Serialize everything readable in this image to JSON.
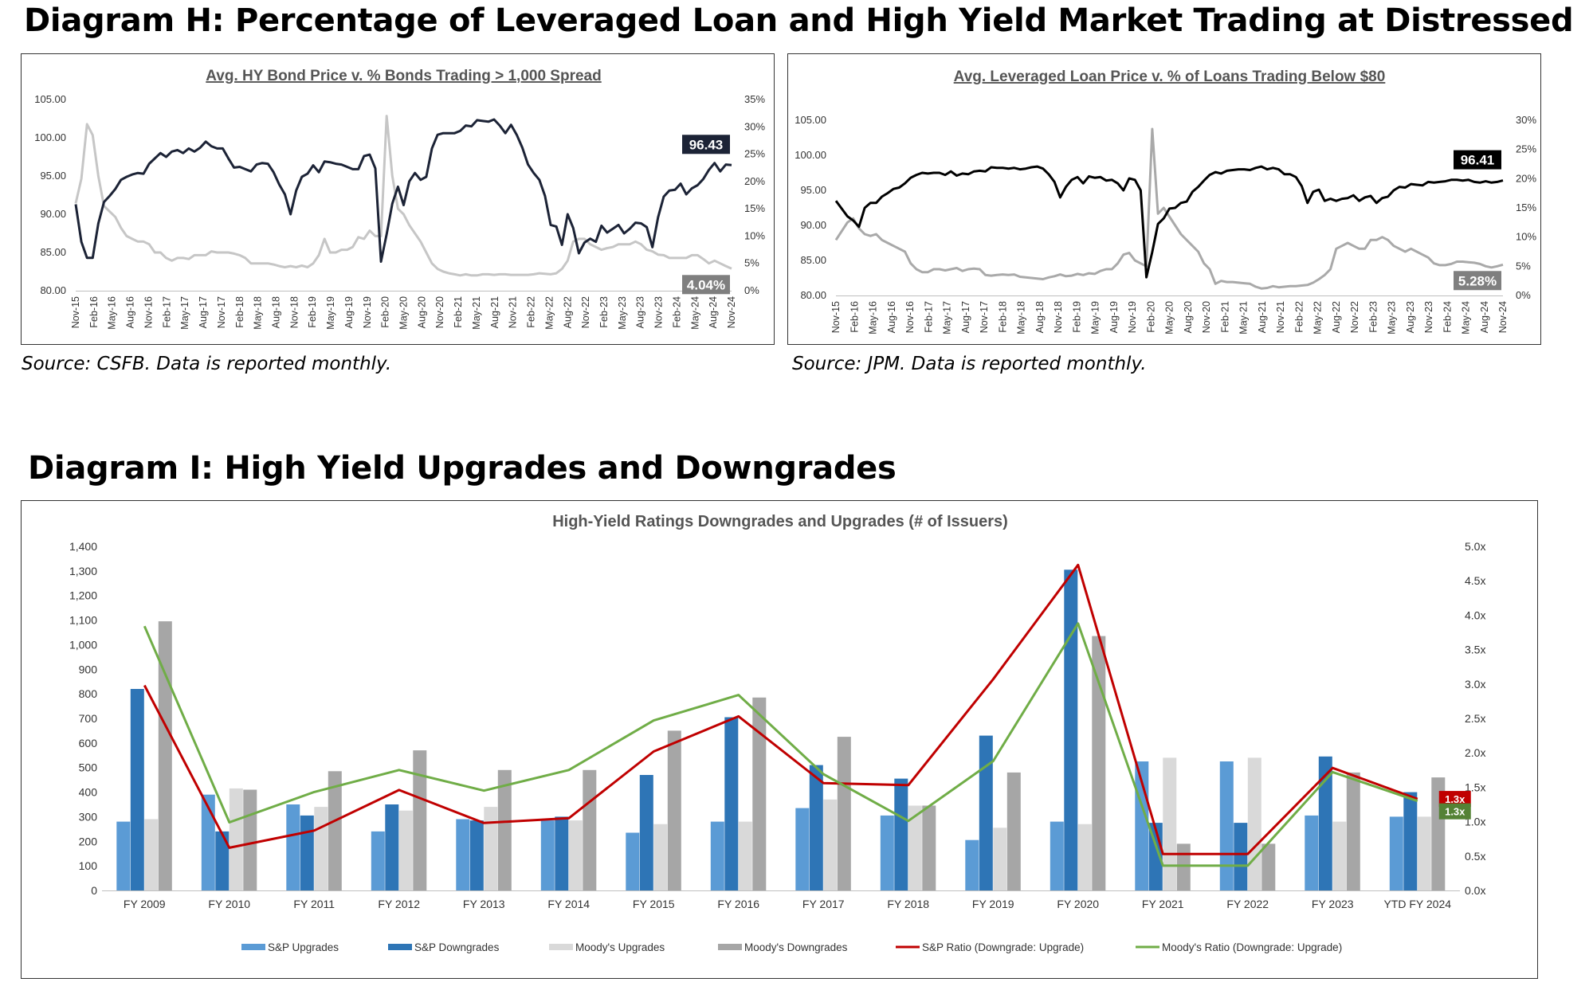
{
  "diagram_h": {
    "title": "Diagram H: Percentage of Leveraged Loan and High Yield Market Trading at Distressed"
  },
  "diagram_i": {
    "title": "Diagram I: High Yield Upgrades and Downgrades"
  },
  "chart_data": [
    {
      "type": "line",
      "title": "Avg. HY Bond Price v. % Bonds Trading > 1,000 Spread",
      "source": "Source: CSFB. Data is reported monthly.",
      "x_ticks": [
        "Nov-15",
        "Feb-16",
        "May-16",
        "Aug-16",
        "Nov-16",
        "Feb-17",
        "May-17",
        "Aug-17",
        "Nov-17",
        "Feb-18",
        "May-18",
        "Aug-18",
        "Nov-18",
        "Feb-19",
        "May-19",
        "Aug-19",
        "Nov-19",
        "Feb-20",
        "May-20",
        "Aug-20",
        "Nov-20",
        "Feb-21",
        "May-21",
        "Aug-21",
        "Nov-21",
        "Feb-22",
        "May-22",
        "Aug-22",
        "Nov-22",
        "Feb-23",
        "May-23",
        "Aug-23",
        "Nov-23",
        "Feb-24",
        "May-24",
        "Aug-24",
        "Nov-24"
      ],
      "y_left": {
        "ticks": [
          "105.00",
          "100.00",
          "95.00",
          "90.00",
          "85.00",
          "80.00"
        ],
        "min": 80,
        "max": 105
      },
      "y_right": {
        "ticks": [
          "35%",
          "30%",
          "25%",
          "20%",
          "15%",
          "10%",
          "5%",
          "0%"
        ],
        "min": 0,
        "max": 35
      },
      "colors": {
        "price": "#1c2336",
        "pct": "#c6c6c6"
      },
      "series": [
        {
          "axis": "left",
          "values": [
            91.3,
            86.4,
            84.3,
            84.3,
            88.8,
            91.6,
            92.4,
            93.3,
            94.5,
            94.9,
            95.2,
            95.4,
            95.3,
            96.6,
            97.3,
            98.0,
            97.5,
            98.2,
            98.4,
            98.0,
            98.6,
            98.2,
            98.7,
            99.5,
            98.9,
            98.6,
            98.6,
            97.3,
            96.1,
            96.2,
            95.9,
            95.6,
            96.5,
            96.7,
            96.6,
            95.5,
            93.9,
            92.6,
            90.0,
            93.1,
            94.9,
            95.3,
            96.4,
            95.5,
            96.9,
            96.8,
            96.6,
            96.5,
            96.2,
            95.9,
            95.9,
            97.6,
            97.8,
            96.0,
            83.8,
            87.4,
            91.4,
            93.6,
            91.2,
            94.3,
            95.4,
            94.5,
            94.9,
            98.6,
            100.4,
            100.6,
            100.6,
            100.6,
            100.9,
            101.6,
            101.5,
            102.3,
            102.2,
            102.1,
            102.4,
            101.6,
            100.6,
            101.7,
            100.4,
            98.7,
            96.5,
            95.4,
            94.5,
            92.4,
            88.6,
            88.4,
            86.0,
            90.0,
            88.2,
            84.9,
            86.3,
            86.8,
            86.4,
            88.5,
            87.6,
            88.1,
            88.6,
            87.5,
            88.1,
            88.9,
            88.8,
            88.3,
            85.7,
            89.6,
            92.3,
            93.1,
            93.2,
            94.0,
            92.6,
            93.4,
            93.8,
            94.6,
            95.8,
            96.7,
            95.6,
            96.5,
            96.43
          ]
        },
        {
          "axis": "right",
          "values": [
            16.0,
            20.5,
            30.5,
            28.5,
            21.0,
            15.5,
            14.5,
            13.5,
            11.5,
            10.0,
            9.5,
            9.0,
            9.0,
            8.5,
            7.0,
            7.0,
            6.0,
            5.5,
            6.0,
            6.0,
            5.8,
            6.5,
            6.5,
            6.5,
            7.2,
            7.0,
            7.0,
            7.0,
            6.8,
            6.5,
            6.0,
            5.0,
            5.0,
            5.0,
            5.0,
            4.8,
            4.5,
            4.3,
            4.5,
            4.3,
            4.6,
            4.3,
            5.0,
            6.5,
            9.5,
            7.0,
            7.0,
            7.5,
            7.5,
            8.0,
            9.8,
            9.5,
            11.0,
            10.0,
            10.0,
            32.0,
            21.0,
            15.0,
            14.0,
            12.0,
            10.5,
            9.0,
            7.0,
            5.0,
            4.0,
            3.5,
            3.2,
            3.0,
            2.8,
            3.0,
            2.8,
            2.8,
            3.0,
            3.0,
            2.9,
            3.0,
            3.0,
            2.9,
            2.9,
            2.9,
            2.9,
            3.0,
            3.2,
            3.1,
            3.0,
            3.2,
            4.0,
            5.5,
            9.0,
            9.5,
            9.5,
            8.5,
            8.0,
            7.5,
            7.8,
            8.0,
            8.5,
            8.5,
            8.5,
            9.0,
            8.5,
            7.5,
            7.2,
            6.6,
            6.5,
            6.0,
            6.0,
            6.0,
            6.0,
            6.5,
            6.5,
            5.8,
            5.0,
            5.5,
            5.0,
            4.5,
            4.04
          ]
        }
      ],
      "callouts": {
        "price": "96.43",
        "pct": "4.04%"
      }
    },
    {
      "type": "line",
      "title": "Avg. Leveraged Loan Price v. % of Loans Trading Below $80",
      "source": "Source: JPM. Data is reported monthly.",
      "x_ticks": [
        "Nov-15",
        "Feb-16",
        "May-16",
        "Aug-16",
        "Nov-16",
        "Feb-17",
        "May-17",
        "Aug-17",
        "Nov-17",
        "Feb-18",
        "May-18",
        "Aug-18",
        "Nov-18",
        "Feb-19",
        "May-19",
        "Aug-19",
        "Nov-19",
        "Feb-20",
        "May-20",
        "Aug-20",
        "Nov-20",
        "Feb-21",
        "May-21",
        "Aug-21",
        "Nov-21",
        "Feb-22",
        "May-22",
        "Aug-22",
        "Nov-22",
        "Feb-23",
        "May-23",
        "Aug-23",
        "Nov-23",
        "Feb-24",
        "May-24",
        "Aug-24",
        "Nov-24"
      ],
      "y_left": {
        "ticks": [
          "105.00",
          "100.00",
          "95.00",
          "90.00",
          "85.00",
          "80.00"
        ],
        "min": 80,
        "max": 105
      },
      "y_right": {
        "ticks": [
          "30%",
          "25%",
          "20%",
          "15%",
          "10%",
          "5%",
          "0%"
        ],
        "min": 0,
        "max": 30
      },
      "colors": {
        "price": "#000000",
        "pct": "#a9a9a9"
      },
      "series": [
        {
          "axis": "left",
          "values": [
            93.5,
            92.4,
            91.3,
            90.7,
            89.8,
            92.5,
            93.2,
            93.2,
            94.1,
            94.6,
            95.2,
            95.4,
            96.0,
            96.8,
            97.2,
            97.5,
            97.4,
            97.5,
            97.5,
            97.2,
            97.7,
            97.1,
            97.4,
            97.3,
            97.7,
            97.8,
            97.7,
            98.3,
            98.2,
            98.2,
            98.1,
            98.2,
            98.0,
            98.1,
            98.3,
            98.4,
            98.1,
            97.3,
            96.2,
            94.0,
            95.5,
            96.5,
            96.9,
            96.0,
            97.0,
            96.8,
            96.9,
            96.4,
            96.5,
            96.0,
            95.0,
            96.7,
            96.5,
            95.0,
            82.6,
            86.2,
            90.2,
            91.0,
            92.4,
            92.5,
            93.2,
            93.4,
            94.8,
            95.5,
            96.4,
            97.2,
            97.6,
            97.4,
            97.8,
            97.9,
            98.0,
            98.0,
            97.9,
            98.2,
            98.4,
            98.0,
            98.2,
            98.0,
            97.3,
            97.3,
            96.9,
            95.6,
            93.2,
            94.8,
            95.1,
            93.5,
            93.8,
            93.5,
            93.8,
            93.9,
            94.3,
            93.5,
            94.0,
            94.2,
            93.2,
            93.9,
            94.1,
            95.0,
            95.5,
            95.4,
            95.9,
            95.8,
            95.7,
            96.2,
            96.1,
            96.2,
            96.3,
            96.5,
            96.5,
            96.4,
            96.5,
            96.2,
            96.1,
            96.3,
            96.1,
            96.2,
            96.41
          ]
        },
        {
          "axis": "right",
          "values": [
            9.5,
            11.0,
            12.5,
            13.2,
            11.5,
            10.5,
            10.2,
            10.5,
            9.5,
            9.0,
            8.5,
            8.0,
            7.5,
            5.5,
            4.5,
            4.0,
            4.0,
            4.5,
            4.5,
            4.3,
            4.5,
            4.7,
            4.2,
            4.5,
            4.6,
            4.5,
            3.5,
            3.4,
            3.5,
            3.6,
            3.5,
            3.6,
            3.2,
            3.1,
            3.0,
            2.9,
            2.8,
            3.1,
            3.3,
            3.6,
            3.3,
            3.4,
            3.7,
            3.5,
            3.8,
            3.7,
            4.2,
            4.5,
            4.5,
            5.5,
            7.0,
            7.3,
            6.0,
            5.5,
            5.0,
            28.5,
            14.0,
            15.0,
            13.5,
            12.0,
            10.5,
            9.5,
            8.5,
            7.5,
            5.5,
            4.5,
            2.0,
            2.5,
            2.3,
            2.3,
            2.2,
            2.1,
            2.0,
            1.5,
            1.2,
            1.3,
            1.6,
            1.4,
            1.5,
            1.6,
            1.6,
            1.7,
            1.8,
            2.2,
            2.8,
            3.5,
            4.5,
            8.0,
            8.5,
            9.0,
            8.5,
            8.0,
            8.0,
            9.5,
            9.5,
            10.0,
            9.5,
            8.5,
            8.0,
            7.5,
            8.0,
            7.5,
            7.0,
            6.5,
            5.5,
            5.2,
            5.2,
            5.4,
            5.8,
            5.8,
            5.7,
            5.6,
            5.4,
            5.0,
            4.8,
            5.0,
            5.28
          ]
        }
      ],
      "callouts": {
        "price": "96.41",
        "pct": "5.28%"
      }
    },
    {
      "type": "bar",
      "title": "High-Yield Ratings Downgrades and Upgrades  (# of Issuers)",
      "categories": [
        "FY 2009",
        "FY 2010",
        "FY 2011",
        "FY 2012",
        "FY 2013",
        "FY 2014",
        "FY 2015",
        "FY 2016",
        "FY 2017",
        "FY 2018",
        "FY 2019",
        "FY 2020",
        "FY 2021",
        "FY 2022",
        "FY 2023",
        "YTD FY 2024"
      ],
      "y_left": {
        "ticks": [
          "1,400",
          "1,300",
          "1,200",
          "1,100",
          "1,000",
          "900",
          "800",
          "700",
          "600",
          "500",
          "400",
          "300",
          "200",
          "100",
          "0"
        ],
        "min": 0,
        "max": 1400
      },
      "y_right": {
        "ticks": [
          "5.0x",
          "4.5x",
          "4.0x",
          "3.5x",
          "3.0x",
          "2.5x",
          "2.0x",
          "1.5x",
          "1.0x",
          "0.5x",
          "0.0x"
        ],
        "min": 0,
        "max": 5
      },
      "series": [
        {
          "name": "S&P Upgrades",
          "kind": "bar",
          "color": "#5b9bd5",
          "values": [
            280,
            390,
            350,
            240,
            290,
            285,
            235,
            280,
            335,
            305,
            205,
            280,
            525,
            525,
            305,
            300
          ]
        },
        {
          "name": "S&P Downgrades",
          "kind": "bar",
          "color": "#2e75b6",
          "values": [
            820,
            240,
            305,
            350,
            285,
            300,
            470,
            705,
            510,
            455,
            630,
            1305,
            275,
            275,
            545,
            400
          ]
        },
        {
          "name": "Moody's Upgrades",
          "kind": "bar",
          "color": "#d9d9d9",
          "values": [
            290,
            415,
            340,
            325,
            340,
            285,
            270,
            280,
            370,
            345,
            255,
            270,
            540,
            540,
            280,
            300
          ]
        },
        {
          "name": "Moody's Downgrades",
          "kind": "bar",
          "color": "#a6a6a6",
          "values": [
            1095,
            410,
            485,
            570,
            490,
            490,
            650,
            785,
            625,
            345,
            480,
            1035,
            190,
            190,
            480,
            460
          ]
        },
        {
          "name": "S&P Ratio (Downgrade: Upgrade)",
          "kind": "line",
          "color": "#c00000",
          "values": [
            2.98,
            0.62,
            0.87,
            1.46,
            0.98,
            1.05,
            2.02,
            2.53,
            1.56,
            1.53,
            3.07,
            4.73,
            0.53,
            0.53,
            1.78,
            1.33
          ]
        },
        {
          "name": "Moody's Ratio (Downgrade: Upgrade)",
          "kind": "line",
          "color": "#70ad47",
          "values": [
            3.84,
            0.99,
            1.43,
            1.75,
            1.45,
            1.75,
            2.47,
            2.84,
            1.69,
            1.01,
            1.88,
            3.88,
            0.36,
            0.36,
            1.72,
            1.3
          ]
        }
      ],
      "callouts": {
        "sp": "1.3x",
        "moodys": "1.3x"
      }
    }
  ]
}
